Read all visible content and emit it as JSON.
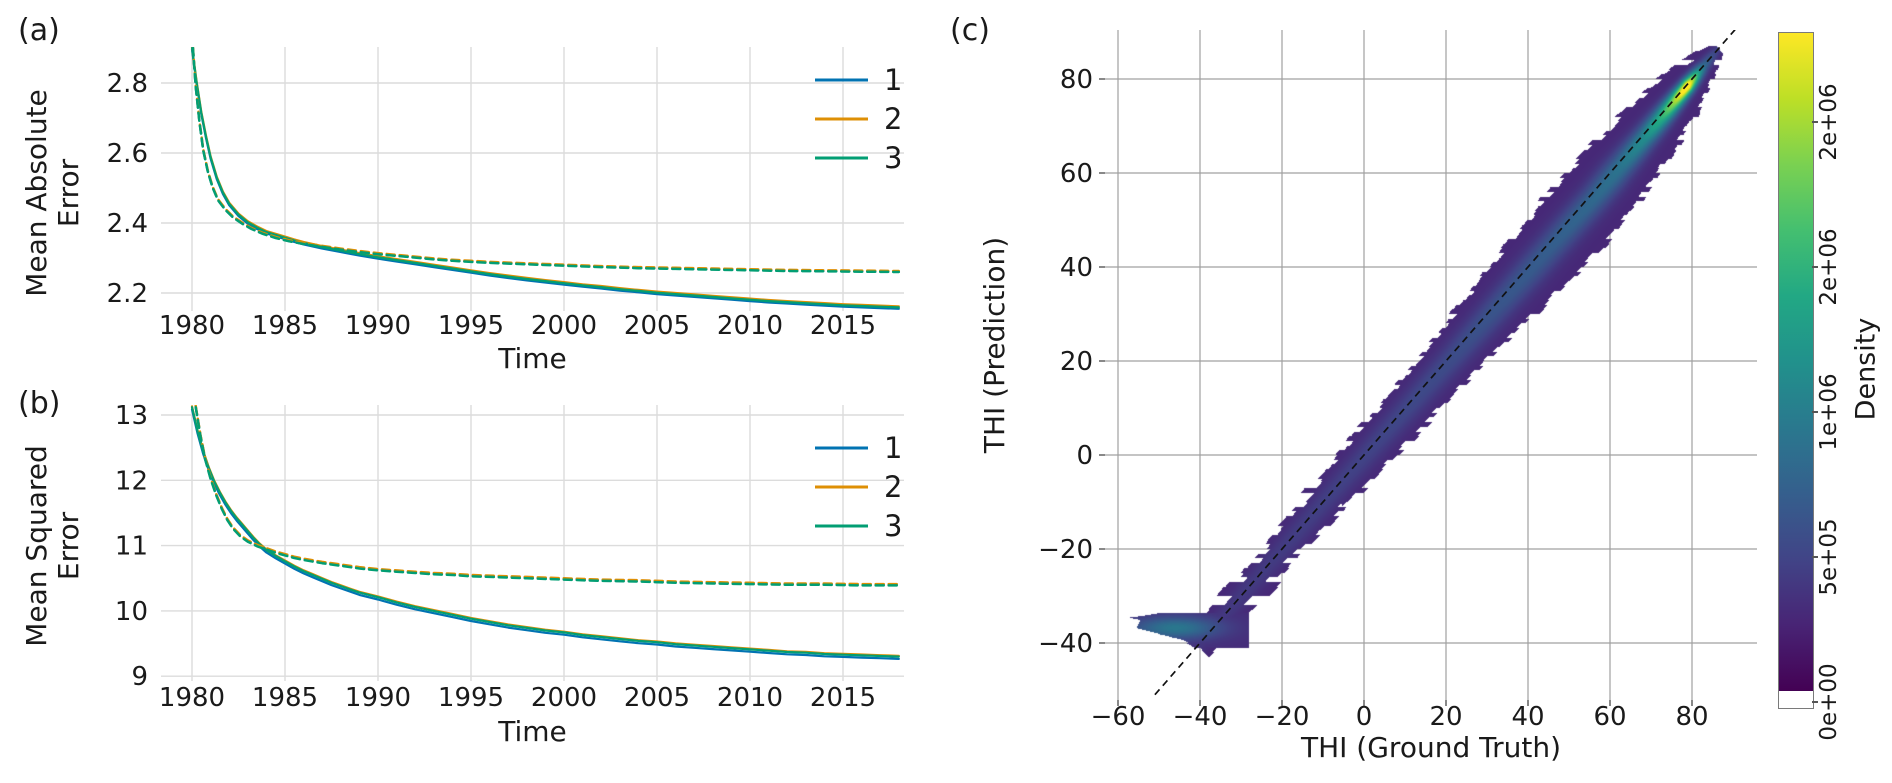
{
  "figure": {
    "background": "#ffffff"
  },
  "palette": {
    "series1": "#0173b2",
    "series2": "#de8f05",
    "series3": "#029e73",
    "grid_light": "#dcdcdc",
    "grid_dark": "#a0a0a0",
    "text": "#1a1a1a",
    "identity_line": "#111111"
  },
  "chart_data": [
    {
      "id": "a",
      "type": "line",
      "letter": "(a)",
      "xlabel": "Time",
      "ylabel_lines": [
        "Mean Absolute",
        "Error"
      ],
      "xlim": [
        1978.33,
        2018.3
      ],
      "ylim": [
        2.148,
        2.905
      ],
      "xticks": [
        1980,
        1985,
        1990,
        1995,
        2000,
        2005,
        2010,
        2015
      ],
      "xticklabels": [
        "1980",
        "1985",
        "1990",
        "1995",
        "2000",
        "2005",
        "2010",
        "2015"
      ],
      "yticks": [
        2.2,
        2.4,
        2.6,
        2.8
      ],
      "yticklabels": [
        "2.2",
        "2.4",
        "2.6",
        "2.8"
      ],
      "legend": [
        "1",
        "2",
        "3"
      ],
      "grid": true,
      "legend_position": "upper right",
      "solid_base": [
        [
          1980,
          2.9
        ],
        [
          1980.25,
          2.8
        ],
        [
          1980.5,
          2.715
        ],
        [
          1980.75,
          2.648
        ],
        [
          1981,
          2.588
        ],
        [
          1981.33,
          2.53
        ],
        [
          1981.66,
          2.487
        ],
        [
          1982,
          2.455
        ],
        [
          1982.5,
          2.424
        ],
        [
          1983,
          2.402
        ],
        [
          1983.5,
          2.387
        ],
        [
          1984,
          2.374
        ],
        [
          1984.5,
          2.366
        ],
        [
          1985,
          2.358
        ],
        [
          1985.5,
          2.35
        ],
        [
          1986,
          2.343
        ],
        [
          1987,
          2.331
        ],
        [
          1988,
          2.321
        ],
        [
          1989,
          2.311
        ],
        [
          1990,
          2.302
        ],
        [
          1991,
          2.294
        ],
        [
          1992,
          2.286
        ],
        [
          1993,
          2.278
        ],
        [
          1994,
          2.27
        ],
        [
          1995,
          2.262
        ],
        [
          1996,
          2.254
        ],
        [
          1997,
          2.247
        ],
        [
          1998,
          2.24
        ],
        [
          1999,
          2.234
        ],
        [
          2000,
          2.228
        ],
        [
          2001,
          2.222
        ],
        [
          2002,
          2.217
        ],
        [
          2003,
          2.211
        ],
        [
          2004,
          2.206
        ],
        [
          2005,
          2.201
        ],
        [
          2006,
          2.197
        ],
        [
          2007,
          2.193
        ],
        [
          2008,
          2.189
        ],
        [
          2009,
          2.185
        ],
        [
          2010,
          2.181
        ],
        [
          2011,
          2.177
        ],
        [
          2012,
          2.174
        ],
        [
          2013,
          2.171
        ],
        [
          2014,
          2.168
        ],
        [
          2015,
          2.165
        ],
        [
          2016,
          2.163
        ],
        [
          2017,
          2.161
        ],
        [
          2018,
          2.159
        ]
      ],
      "dashed_base": [
        [
          1980.05,
          2.9
        ],
        [
          1980.2,
          2.79
        ],
        [
          1980.4,
          2.69
        ],
        [
          1980.6,
          2.608
        ],
        [
          1980.85,
          2.547
        ],
        [
          1981.1,
          2.502
        ],
        [
          1981.4,
          2.465
        ],
        [
          1981.8,
          2.437
        ],
        [
          1982.2,
          2.416
        ],
        [
          1982.7,
          2.398
        ],
        [
          1983.2,
          2.383
        ],
        [
          1983.8,
          2.369
        ],
        [
          1984.5,
          2.357
        ],
        [
          1985.2,
          2.348
        ],
        [
          1986,
          2.34
        ],
        [
          1987,
          2.332
        ],
        [
          1988,
          2.324
        ],
        [
          1989,
          2.317
        ],
        [
          1990,
          2.311
        ],
        [
          1991,
          2.306
        ],
        [
          1992,
          2.301
        ],
        [
          1993,
          2.296
        ],
        [
          1994,
          2.292
        ],
        [
          1995,
          2.289
        ],
        [
          1996,
          2.286
        ],
        [
          1997,
          2.284
        ],
        [
          1998,
          2.282
        ],
        [
          1999,
          2.28
        ],
        [
          2000,
          2.278
        ],
        [
          2002,
          2.274
        ],
        [
          2004,
          2.271
        ],
        [
          2006,
          2.269
        ],
        [
          2008,
          2.267
        ],
        [
          2010,
          2.265
        ],
        [
          2012,
          2.263
        ],
        [
          2014,
          2.262
        ],
        [
          2016,
          2.261
        ],
        [
          2018,
          2.26
        ]
      ],
      "series": [
        {
          "name": "1",
          "style": "solid",
          "color": "#0173b2",
          "offset": -0.004
        },
        {
          "name": "2",
          "style": "solid",
          "color": "#de8f05",
          "offset": 0.003
        },
        {
          "name": "3",
          "style": "solid",
          "color": "#029e73",
          "offset": 0
        },
        {
          "name": "1",
          "style": "dashed",
          "color": "#0173b2",
          "offset": 0.001
        },
        {
          "name": "2",
          "style": "dashed",
          "color": "#de8f05",
          "offset": 0.003
        },
        {
          "name": "3",
          "style": "dashed",
          "color": "#029e73",
          "offset": 0
        }
      ]
    },
    {
      "id": "b",
      "type": "line",
      "letter": "(b)",
      "xlabel": "Time",
      "ylabel_lines": [
        "Mean Squared",
        "Error"
      ],
      "xlim": [
        1978.33,
        2018.3
      ],
      "ylim": [
        8.926,
        13.153
      ],
      "xticks": [
        1980,
        1985,
        1990,
        1995,
        2000,
        2005,
        2010,
        2015
      ],
      "xticklabels": [
        "1980",
        "1985",
        "1990",
        "1995",
        "2000",
        "2005",
        "2010",
        "2015"
      ],
      "yticks": [
        9,
        10,
        11,
        12,
        13
      ],
      "yticklabels": [
        "9",
        "10",
        "11",
        "12",
        "13"
      ],
      "legend": [
        "1",
        "2",
        "3"
      ],
      "grid": true,
      "legend_position": "upper right",
      "solid_base": [
        [
          1980,
          13.12
        ],
        [
          1980.3,
          12.75
        ],
        [
          1980.6,
          12.44
        ],
        [
          1980.9,
          12.19
        ],
        [
          1981.2,
          11.98
        ],
        [
          1981.5,
          11.81
        ],
        [
          1981.8,
          11.66
        ],
        [
          1982.1,
          11.53
        ],
        [
          1982.4,
          11.42
        ],
        [
          1982.7,
          11.32
        ],
        [
          1983,
          11.22
        ],
        [
          1983.3,
          11.12
        ],
        [
          1983.6,
          11.03
        ],
        [
          1984,
          10.93
        ],
        [
          1984.5,
          10.84
        ],
        [
          1985,
          10.76
        ],
        [
          1985.5,
          10.68
        ],
        [
          1986,
          10.61
        ],
        [
          1986.5,
          10.55
        ],
        [
          1987,
          10.49
        ],
        [
          1987.5,
          10.43
        ],
        [
          1988,
          10.38
        ],
        [
          1988.5,
          10.33
        ],
        [
          1989,
          10.28
        ],
        [
          1990,
          10.21
        ],
        [
          1991,
          10.13
        ],
        [
          1992,
          10.06
        ],
        [
          1993,
          10
        ],
        [
          1994,
          9.94
        ],
        [
          1995,
          9.88
        ],
        [
          1996,
          9.83
        ],
        [
          1997,
          9.78
        ],
        [
          1998,
          9.74
        ],
        [
          1999,
          9.7
        ],
        [
          2000,
          9.67
        ],
        [
          2001,
          9.63
        ],
        [
          2002,
          9.6
        ],
        [
          2003,
          9.57
        ],
        [
          2004,
          9.54
        ],
        [
          2005,
          9.52
        ],
        [
          2006,
          9.49
        ],
        [
          2007,
          9.47
        ],
        [
          2008,
          9.45
        ],
        [
          2009,
          9.43
        ],
        [
          2010,
          9.41
        ],
        [
          2011,
          9.39
        ],
        [
          2012,
          9.37
        ],
        [
          2013,
          9.36
        ],
        [
          2014,
          9.34
        ],
        [
          2015,
          9.33
        ],
        [
          2016,
          9.32
        ],
        [
          2017,
          9.31
        ],
        [
          2018,
          9.3
        ]
      ],
      "dashed_base": [
        [
          1980.2,
          13.12
        ],
        [
          1980.45,
          12.68
        ],
        [
          1980.7,
          12.33
        ],
        [
          1981,
          12.02
        ],
        [
          1981.3,
          11.77
        ],
        [
          1981.6,
          11.56
        ],
        [
          1981.9,
          11.39
        ],
        [
          1982.2,
          11.26
        ],
        [
          1982.6,
          11.14
        ],
        [
          1983,
          11.06
        ],
        [
          1983.5,
          10.99
        ],
        [
          1984,
          10.94
        ],
        [
          1984.5,
          10.89
        ],
        [
          1985,
          10.85
        ],
        [
          1985.5,
          10.81
        ],
        [
          1986,
          10.78
        ],
        [
          1987,
          10.73
        ],
        [
          1988,
          10.69
        ],
        [
          1989,
          10.65
        ],
        [
          1990,
          10.62
        ],
        [
          1991,
          10.6
        ],
        [
          1992,
          10.58
        ],
        [
          1993,
          10.56
        ],
        [
          1994,
          10.55
        ],
        [
          1995,
          10.53
        ],
        [
          1996,
          10.52
        ],
        [
          1997,
          10.51
        ],
        [
          1998,
          10.5
        ],
        [
          2000,
          10.48
        ],
        [
          2002,
          10.46
        ],
        [
          2004,
          10.45
        ],
        [
          2006,
          10.43
        ],
        [
          2008,
          10.42
        ],
        [
          2010,
          10.41
        ],
        [
          2012,
          10.4
        ],
        [
          2014,
          10.4
        ],
        [
          2016,
          10.39
        ],
        [
          2018,
          10.39
        ]
      ],
      "series": [
        {
          "name": "1",
          "style": "solid",
          "color": "#0173b2",
          "offset": -0.035
        },
        {
          "name": "2",
          "style": "solid",
          "color": "#de8f05",
          "offset": 0.012
        },
        {
          "name": "3",
          "style": "solid",
          "color": "#029e73",
          "offset": 0
        },
        {
          "name": "1",
          "style": "dashed",
          "color": "#0173b2",
          "offset": 0.012
        },
        {
          "name": "2",
          "style": "dashed",
          "color": "#de8f05",
          "offset": 0.02
        },
        {
          "name": "3",
          "style": "dashed",
          "color": "#029e73",
          "offset": 0
        }
      ]
    },
    {
      "id": "c",
      "type": "density-heatmap",
      "letter": "(c)",
      "xlabel": "THI (Ground Truth)",
      "ylabel": "THI (Prediction)",
      "xlim": [
        -63.2,
        95.9
      ],
      "ylim": [
        -52.1,
        90.4
      ],
      "xticks": [
        -60,
        -40,
        -20,
        0,
        20,
        40,
        60,
        80
      ],
      "xticklabels": [
        "−60",
        "−40",
        "−20",
        "0",
        "20",
        "40",
        "60",
        "80"
      ],
      "yticks": [
        80,
        60,
        40,
        20,
        0,
        -20,
        -40
      ],
      "yticklabels": [
        "80",
        "60",
        "40",
        "20",
        "0",
        "−20",
        "−40"
      ],
      "grid": true,
      "identity_line": {
        "from": [
          -51,
          -51
        ],
        "to": [
          90.5,
          90.5
        ],
        "style": "dashed"
      },
      "colorbar": {
        "label": "Density",
        "vmax": 2310000,
        "ticks": [
          {
            "value": 0,
            "label": "0e+00"
          },
          {
            "value": 500000,
            "label": "5e+05"
          },
          {
            "value": 1000000,
            "label": "1e+06"
          },
          {
            "value": 1500000,
            "label": "2e+06"
          },
          {
            "value": 2000000,
            "label": "2e+06"
          }
        ],
        "colormap": "viridis",
        "under_color": "#ffffff"
      },
      "density_model": {
        "vmax": 2310000,
        "threshold": 52000,
        "base": 262000,
        "u_range": [
          -40.5,
          86.5
        ],
        "width": [
          [
            -40,
            3.2
          ],
          [
            -32,
            4.2
          ],
          [
            -24,
            5
          ],
          [
            -16,
            5.6
          ],
          [
            -8,
            6.2
          ],
          [
            0,
            7
          ],
          [
            8,
            7.6
          ],
          [
            16,
            8.3
          ],
          [
            24,
            9.2
          ],
          [
            32,
            10
          ],
          [
            40,
            11
          ],
          [
            48,
            12
          ],
          [
            56,
            12.3
          ],
          [
            64,
            11.2
          ],
          [
            70,
            10
          ],
          [
            76,
            8.4
          ],
          [
            80,
            6.3
          ],
          [
            83,
            4.2
          ],
          [
            85,
            2.6
          ],
          [
            86.5,
            1
          ]
        ],
        "center_shift": [
          [
            -40,
            0
          ],
          [
            0,
            0.5
          ],
          [
            30,
            1.1
          ],
          [
            55,
            1.6
          ],
          [
            70,
            0.9
          ],
          [
            86,
            0
          ]
        ],
        "ridge_amp": [
          [
            -40,
            110000
          ],
          [
            -20,
            150000
          ],
          [
            0,
            200000
          ],
          [
            20,
            270000
          ],
          [
            35,
            370000
          ],
          [
            45,
            430000
          ],
          [
            55,
            520000
          ],
          [
            62,
            640000
          ],
          [
            68,
            860000
          ],
          [
            72,
            1200000
          ],
          [
            75,
            1650000
          ],
          [
            77.5,
            2150000
          ],
          [
            78.8,
            2320000
          ],
          [
            80,
            1750000
          ],
          [
            81.5,
            1050000
          ],
          [
            83,
            520000
          ],
          [
            86,
            180000
          ]
        ],
        "ridge_sigma": [
          [
            -40,
            2.2
          ],
          [
            0,
            2.8
          ],
          [
            40,
            3.4
          ],
          [
            60,
            3.1
          ],
          [
            72,
            2.2
          ],
          [
            78,
            1.6
          ],
          [
            86,
            1.2
          ]
        ],
        "hook": {
          "y_top": -33.2,
          "y_bottom": -41.2,
          "x_max": -28,
          "base": 300000,
          "x_min": [
            [
              -41.5,
              -42
            ],
            [
              -40.5,
              -44
            ],
            [
              -39.5,
              -46
            ],
            [
              -38.5,
              -50
            ],
            [
              -37.5,
              -55
            ],
            [
              -36.8,
              -58
            ],
            [
              -36,
              -57.5
            ],
            [
              -35,
              -57
            ],
            [
              -34.6,
              -59
            ],
            [
              -34,
              -54
            ],
            [
              -33.2,
              -48
            ]
          ],
          "core": {
            "x": -46,
            "y": -36.8,
            "amp": 620000,
            "sx": 7.5,
            "sy": 1.7
          }
        },
        "edge_jitter": 1.3,
        "viridis": [
          [
            0,
            "#440154"
          ],
          [
            0.1,
            "#482475"
          ],
          [
            0.2,
            "#414487"
          ],
          [
            0.3,
            "#355f8d"
          ],
          [
            0.4,
            "#2a788e"
          ],
          [
            0.5,
            "#21918c"
          ],
          [
            0.6,
            "#22a884"
          ],
          [
            0.7,
            "#44bf70"
          ],
          [
            0.8,
            "#7ad151"
          ],
          [
            0.9,
            "#bddf26"
          ],
          [
            1,
            "#fde725"
          ]
        ]
      }
    }
  ]
}
